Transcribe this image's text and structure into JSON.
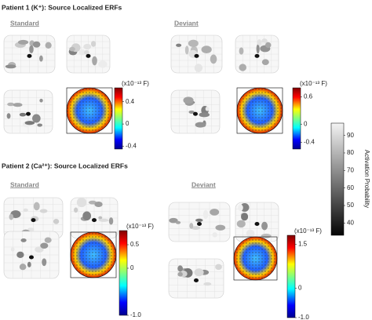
{
  "patients": [
    {
      "title": "Patient 1 (K⁺): Source Localized ERFs",
      "conditions": [
        {
          "label": "Standard",
          "colorbar": {
            "unit": "(x10⁻¹³ F)",
            "lim": [
              -0.45,
              0.65
            ],
            "ticks": [
              0.4,
              0,
              -0.4
            ]
          }
        },
        {
          "label": "Deviant",
          "colorbar": {
            "unit": "(x10⁻¹³ F)",
            "lim": [
              -0.55,
              0.8
            ],
            "ticks": [
              0.6,
              0,
              -0.4
            ]
          }
        }
      ]
    },
    {
      "title": "Patient 2 (Ca²⁺): Source Localized ERFs",
      "conditions": [
        {
          "label": "Standard",
          "colorbar": {
            "unit": "(x10⁻¹³ F)",
            "lim": [
              -1.0,
              0.8
            ],
            "ticks": [
              0.5,
              0,
              {
                "value": -1.0,
                "label": "-1.0"
              }
            ]
          }
        },
        {
          "label": "Deviant",
          "colorbar": {
            "unit": "(x10⁻¹³ F)",
            "lim": [
              -1.0,
              1.8
            ],
            "ticks": [
              1.5,
              0,
              {
                "value": -1.0,
                "label": "-1.0"
              }
            ]
          }
        }
      ]
    }
  ],
  "activation_colorbar": {
    "label": "Activation Probability",
    "lim": [
      33,
      97
    ],
    "ticks": [
      40,
      50,
      60,
      70,
      80,
      90
    ]
  }
}
